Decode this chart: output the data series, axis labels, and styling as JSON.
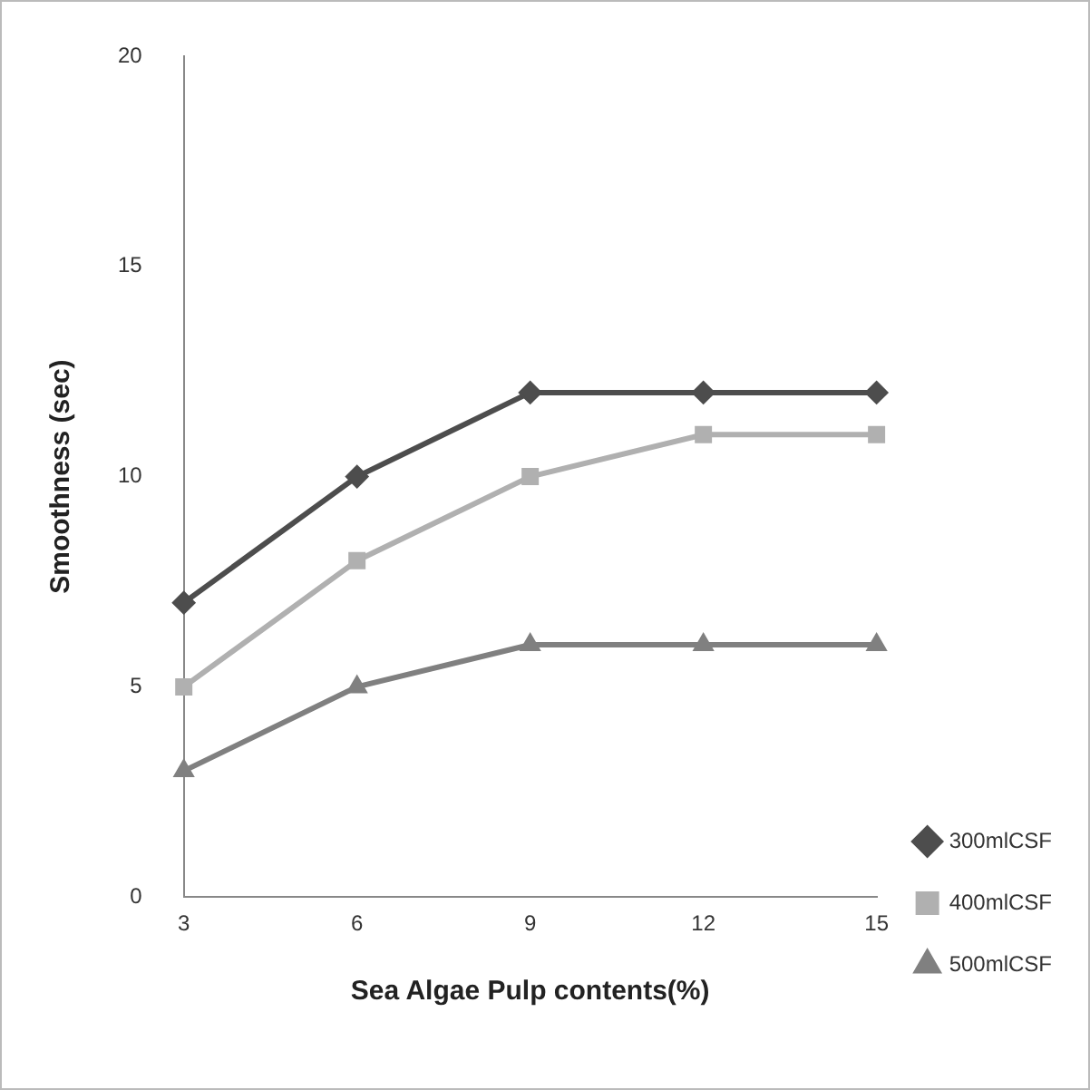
{
  "chart_data": {
    "type": "line",
    "xlabel": "Sea Algae Pulp contents(%)",
    "ylabel": "Smoothness (sec)",
    "categories": [
      "3",
      "6",
      "9",
      "12",
      "15"
    ],
    "series": [
      {
        "name": "300mlCSF",
        "color": "#4d4d4d",
        "marker": "diamond",
        "values": [
          7,
          10,
          12,
          12,
          12
        ]
      },
      {
        "name": "400mlCSF",
        "color": "#b0b0b0",
        "marker": "square",
        "values": [
          5,
          8,
          10,
          11,
          11
        ]
      },
      {
        "name": "500mlCSF",
        "color": "#808080",
        "marker": "triangle",
        "values": [
          3,
          5,
          6,
          6,
          6
        ]
      }
    ],
    "ylim": [
      0,
      20
    ],
    "yticks": [
      0,
      5,
      10,
      15,
      20
    ],
    "grid": false,
    "legend": "right",
    "line_style": "solid"
  }
}
